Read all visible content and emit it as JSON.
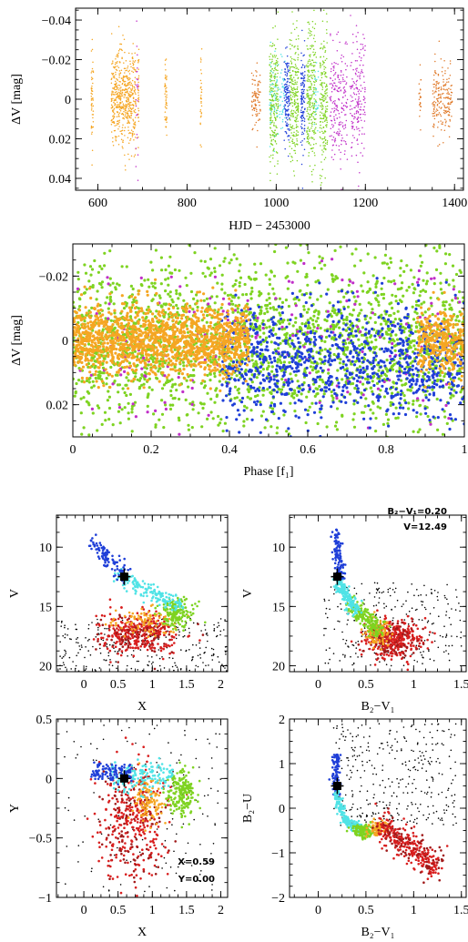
{
  "colors": {
    "orange": "#f5a623",
    "darkorange": "#e07a2a",
    "green": "#7ed321",
    "cyan": "#50e3e6",
    "blue": "#1f3fd8",
    "magenta": "#c02ec8",
    "red": "#d81e1e",
    "darkred": "#a01a1a",
    "black": "#000000"
  },
  "chart_data": [
    {
      "id": "p1",
      "type": "scatter",
      "title": "",
      "xlabel": "HJD − 2453000",
      "ylabel": "ΔV [mag]",
      "xlim": [
        550,
        1420
      ],
      "ylim": [
        0.046,
        -0.046
      ],
      "xticks": [
        600,
        800,
        1000,
        1200,
        1400
      ],
      "yticks": [
        -0.04,
        -0.02,
        0,
        0.02,
        0.04
      ],
      "xtick_labels": [
        "600",
        "800",
        "1000",
        "1200",
        "1400"
      ],
      "ytick_labels": [
        "−0.04",
        "−0.02",
        "0",
        "0.02",
        "0.04"
      ],
      "grid": false,
      "series": [
        {
          "color": "orange",
          "x_ranges": [
            [
              630,
              685
            ],
            [
              585,
              590
            ],
            [
              690,
              692
            ],
            [
              750,
              755
            ],
            [
              830,
              833
            ]
          ],
          "y_range": [
            -0.03,
            0.03
          ],
          "points": 700
        },
        {
          "color": "darkorange",
          "x_ranges": [
            [
              945,
              965
            ],
            [
              1320,
              1325
            ],
            [
              1350,
              1395
            ]
          ],
          "y_range": [
            -0.018,
            0.02
          ],
          "points": 300
        },
        {
          "color": "green",
          "x_ranges": [
            [
              985,
              1005
            ],
            [
              1030,
              1050
            ],
            [
              1068,
              1090
            ],
            [
              1098,
              1115
            ]
          ],
          "y_range": [
            -0.042,
            0.042
          ],
          "points": 900
        },
        {
          "color": "cyan",
          "x_ranges": [
            [
              985,
              1020
            ],
            [
              1085,
              1095
            ]
          ],
          "y_range": [
            -0.025,
            0.025
          ],
          "points": 120
        },
        {
          "color": "blue",
          "x_ranges": [
            [
              1018,
              1030
            ],
            [
              1055,
              1065
            ]
          ],
          "y_range": [
            -0.03,
            0.03
          ],
          "points": 250
        },
        {
          "color": "magenta",
          "x_ranges": [
            [
              1120,
              1160
            ],
            [
              1165,
              1200
            ],
            [
              685,
              690
            ]
          ],
          "y_range": [
            -0.04,
            0.04
          ],
          "points": 400
        }
      ]
    },
    {
      "id": "p2",
      "type": "scatter",
      "title": "",
      "xlabel": "Phase [f₁]",
      "ylabel": "ΔV [mag]",
      "xlim": [
        0,
        1
      ],
      "ylim": [
        0.03,
        -0.03
      ],
      "xticks": [
        0,
        0.2,
        0.4,
        0.6,
        0.8,
        1
      ],
      "yticks": [
        -0.02,
        0,
        0.02
      ],
      "xtick_labels": [
        "0",
        "0.2",
        "0.4",
        "0.6",
        "0.8",
        "1"
      ],
      "ytick_labels": [
        "−0.02",
        "0",
        "0.02"
      ],
      "grid": false,
      "series": [
        {
          "color": "green",
          "x_ranges": [
            [
              0,
              1
            ]
          ],
          "y_range": [
            -0.03,
            0.03
          ],
          "points": 2200
        },
        {
          "color": "magenta",
          "x_ranges": [
            [
              0,
              1
            ]
          ],
          "y_range": [
            -0.028,
            0.028
          ],
          "points": 180
        },
        {
          "color": "blue",
          "x_ranges": [
            [
              0.38,
              1
            ]
          ],
          "y_range": [
            -0.012,
            0.026
          ],
          "points": 900
        },
        {
          "color": "orange",
          "x_ranges": [
            [
              0,
              0.45
            ]
          ],
          "y_range": [
            -0.012,
            0.012
          ],
          "points": 1400
        },
        {
          "color": "orange",
          "x_ranges": [
            [
              0.88,
              1
            ]
          ],
          "y_range": [
            -0.012,
            0.012
          ],
          "points": 300
        }
      ]
    },
    {
      "id": "p3",
      "type": "scatter",
      "title": "",
      "xlabel": "X",
      "ylabel": "V",
      "xlim": [
        -0.4,
        2.1
      ],
      "ylim": [
        20.5,
        7.3
      ],
      "xticks": [
        0,
        0.5,
        1,
        1.5,
        2
      ],
      "yticks": [
        10,
        15,
        20
      ],
      "xtick_labels": [
        "0",
        "0.5",
        "1",
        "1.5",
        "2"
      ],
      "ytick_labels": [
        "10",
        "15",
        "20"
      ],
      "grid": false,
      "highlight": {
        "x": 0.59,
        "y": 12.49
      }
    },
    {
      "id": "p4",
      "type": "scatter",
      "title": "",
      "xlabel": "B₂−V₁",
      "ylabel": "V",
      "xlim": [
        -0.3,
        1.55
      ],
      "ylim": [
        20.5,
        7.3
      ],
      "xticks": [
        0,
        0.5,
        1,
        1.5
      ],
      "yticks": [
        10,
        15,
        20
      ],
      "xtick_labels": [
        "0",
        "0.5",
        "1",
        "1.5"
      ],
      "ytick_labels": [
        "10",
        "15",
        "20"
      ],
      "grid": false,
      "highlight": {
        "x": 0.2,
        "y": 12.49
      },
      "annotations": [
        "B₂−V₁=0.20",
        "V=12.49"
      ]
    },
    {
      "id": "p5",
      "type": "scatter",
      "title": "",
      "xlabel": "X",
      "ylabel": "Y",
      "xlim": [
        -0.4,
        2.1
      ],
      "ylim": [
        -1,
        0.5
      ],
      "xticks": [
        0,
        0.5,
        1,
        1.5,
        2
      ],
      "yticks": [
        -1,
        -0.5,
        0,
        0.5
      ],
      "xtick_labels": [
        "0",
        "0.5",
        "1",
        "1.5",
        "2"
      ],
      "ytick_labels": [
        "−1",
        "−0.5",
        "0",
        "0.5"
      ],
      "grid": false,
      "highlight": {
        "x": 0.59,
        "y": 0.0
      },
      "annotations": [
        "X=0.59",
        "Y=0.00"
      ]
    },
    {
      "id": "p6",
      "type": "scatter",
      "title": "",
      "xlabel": "B₂−V₁",
      "ylabel": "B₂−U",
      "xlim": [
        -0.3,
        1.55
      ],
      "ylim": [
        -2,
        2
      ],
      "xticks": [
        0,
        0.5,
        1,
        1.5
      ],
      "yticks": [
        -2,
        -1,
        0,
        1,
        2
      ],
      "xtick_labels": [
        "0",
        "0.5",
        "1",
        "1.5"
      ],
      "ytick_labels": [
        "−2",
        "−1",
        "0",
        "1",
        "2"
      ],
      "grid": false,
      "highlight": {
        "x": 0.2,
        "y": 0.5
      }
    }
  ]
}
